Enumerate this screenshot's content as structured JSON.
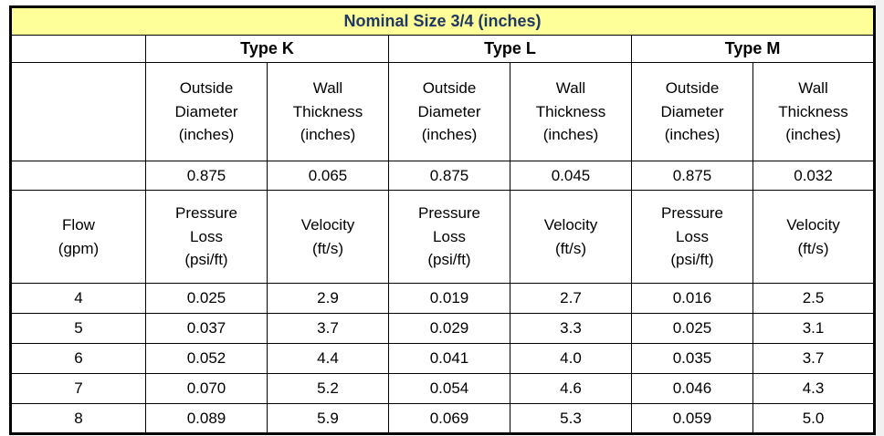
{
  "colors": {
    "title_background": "#FFFF99",
    "title_text": "#1F3864",
    "border": "#000000",
    "body_text": "#000000"
  },
  "table": {
    "title": "Nominal Size 3/4 (inches)",
    "type_headers": [
      "Type K",
      "Type L",
      "Type M"
    ],
    "od_header": "Outside\nDiameter\n(inches)",
    "wall_header": "Wall\nThickness\n(inches)",
    "dimensions": {
      "type_k": {
        "od": "0.875",
        "wall": "0.065"
      },
      "type_l": {
        "od": "0.875",
        "wall": "0.045"
      },
      "type_m": {
        "od": "0.875",
        "wall": "0.032"
      }
    },
    "flow_header": "Flow\n(gpm)",
    "pressure_header": "Pressure\nLoss\n(psi/ft)",
    "velocity_header": "Velocity\n(ft/s)",
    "rows": [
      {
        "flow": "4",
        "values": [
          "0.025",
          "2.9",
          "0.019",
          "2.7",
          "0.016",
          "2.5"
        ]
      },
      {
        "flow": "5",
        "values": [
          "0.037",
          "3.7",
          "0.029",
          "3.3",
          "0.025",
          "3.1"
        ]
      },
      {
        "flow": "6",
        "values": [
          "0.052",
          "4.4",
          "0.041",
          "4.0",
          "0.035",
          "3.7"
        ]
      },
      {
        "flow": "7",
        "values": [
          "0.070",
          "5.2",
          "0.054",
          "4.6",
          "0.046",
          "4.3"
        ]
      },
      {
        "flow": "8",
        "values": [
          "0.089",
          "5.9",
          "0.069",
          "5.3",
          "0.059",
          "5.0"
        ]
      }
    ]
  }
}
